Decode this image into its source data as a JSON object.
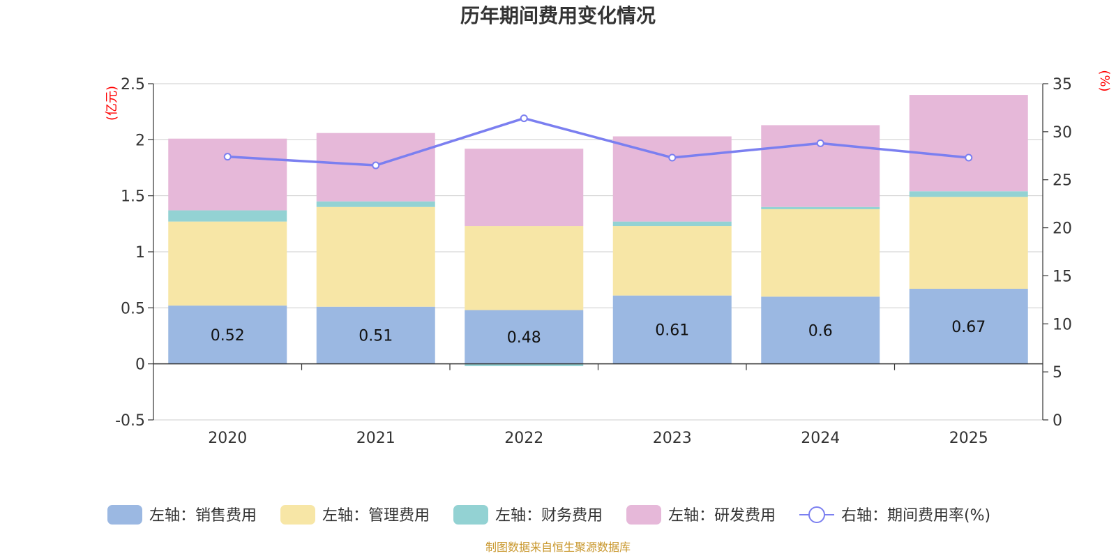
{
  "chart_data": {
    "type": "bar",
    "stacked": true,
    "title": "历年期间费用变化情况",
    "categories": [
      "2020",
      "2021",
      "2022",
      "2023",
      "2024",
      "2025"
    ],
    "left_axis": {
      "unit_label": "(亿元)",
      "ylim": [
        -0.5,
        2.5
      ],
      "ticks": [
        -0.5,
        0,
        0.5,
        1,
        1.5,
        2,
        2.5
      ],
      "tick_labels": [
        "-0.5",
        "0",
        "0.5",
        "1",
        "1.5",
        "2",
        "2.5"
      ]
    },
    "right_axis": {
      "unit_label": "(%)",
      "ylim": [
        0,
        35
      ],
      "ticks": [
        0,
        5,
        10,
        15,
        20,
        25,
        30,
        35
      ],
      "tick_labels": [
        "0",
        "5",
        "10",
        "15",
        "20",
        "25",
        "30",
        "35"
      ]
    },
    "series": [
      {
        "name": "左轴：销售费用",
        "axis": "left",
        "kind": "bar",
        "color": "#9bb8e2",
        "values": [
          0.52,
          0.51,
          0.48,
          0.61,
          0.6,
          0.67
        ],
        "labels": [
          "0.52",
          "0.51",
          "0.48",
          "0.61",
          "0.6",
          "0.67"
        ]
      },
      {
        "name": "左轴：管理费用",
        "axis": "left",
        "kind": "bar",
        "color": "#f7e6a6",
        "values": [
          0.75,
          0.89,
          0.75,
          0.62,
          0.78,
          0.82
        ]
      },
      {
        "name": "左轴：财务费用",
        "axis": "left",
        "kind": "bar",
        "color": "#93d2d3",
        "values": [
          0.1,
          0.05,
          -0.02,
          0.04,
          0.02,
          0.05
        ]
      },
      {
        "name": "左轴：研发费用",
        "axis": "left",
        "kind": "bar",
        "color": "#e6b8d9",
        "values": [
          0.64,
          0.61,
          0.69,
          0.76,
          0.73,
          0.86
        ]
      },
      {
        "name": "右轴：期间费用率(%)",
        "axis": "right",
        "kind": "line",
        "color": "#7b7ff0",
        "values": [
          27.4,
          26.5,
          31.4,
          27.3,
          28.8,
          27.3
        ]
      }
    ],
    "source": "制图数据来自恒生聚源数据库"
  }
}
